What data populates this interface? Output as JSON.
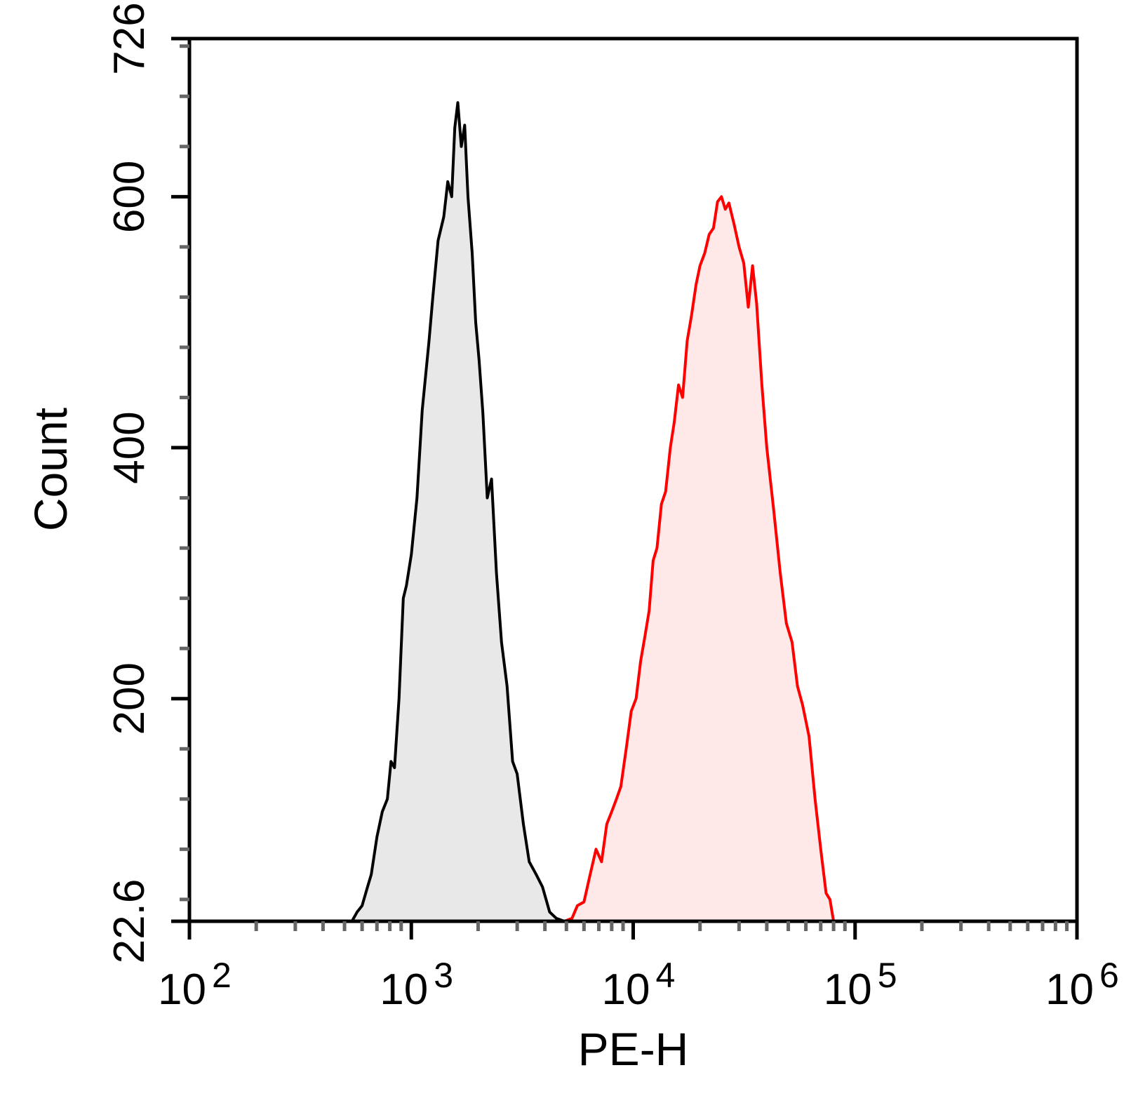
{
  "chart_data": {
    "type": "area",
    "title": "",
    "xlabel": "PE-H",
    "ylabel": "Count",
    "x_scale": "log",
    "xlim": [
      100,
      1000000
    ],
    "ylim": [
      22.6,
      726
    ],
    "x_tick_values": [
      100,
      1000,
      10000,
      100000,
      1000000
    ],
    "x_tick_labels": [
      {
        "base": "10",
        "exp": "2"
      },
      {
        "base": "10",
        "exp": "3"
      },
      {
        "base": "10",
        "exp": "4"
      },
      {
        "base": "10",
        "exp": "5"
      },
      {
        "base": "10",
        "exp": "6"
      }
    ],
    "y_tick_values": [
      22.6,
      200,
      400,
      600,
      726
    ],
    "y_tick_labels": [
      "22.6",
      "200",
      "400",
      "600",
      "726"
    ],
    "grid": false,
    "legend": "none",
    "series": [
      {
        "color": "#000000",
        "fill": "#e8e8e8",
        "points": [
          [
            540,
            22.6
          ],
          [
            570,
            30
          ],
          [
            600,
            35
          ],
          [
            630,
            48
          ],
          [
            660,
            60
          ],
          [
            700,
            90
          ],
          [
            740,
            110
          ],
          [
            780,
            120
          ],
          [
            810,
            150
          ],
          [
            840,
            145
          ],
          [
            880,
            200
          ],
          [
            920,
            280
          ],
          [
            950,
            290
          ],
          [
            1000,
            315
          ],
          [
            1060,
            360
          ],
          [
            1120,
            430
          ],
          [
            1200,
            484
          ],
          [
            1250,
            520
          ],
          [
            1320,
            565
          ],
          [
            1400,
            584
          ],
          [
            1460,
            612
          ],
          [
            1520,
            600
          ],
          [
            1570,
            655
          ],
          [
            1620,
            675
          ],
          [
            1680,
            640
          ],
          [
            1740,
            657
          ],
          [
            1800,
            600
          ],
          [
            1880,
            555
          ],
          [
            1950,
            500
          ],
          [
            2020,
            470
          ],
          [
            2100,
            428
          ],
          [
            2200,
            360
          ],
          [
            2300,
            375
          ],
          [
            2420,
            300
          ],
          [
            2550,
            245
          ],
          [
            2700,
            210
          ],
          [
            2860,
            150
          ],
          [
            3000,
            140
          ],
          [
            3200,
            100
          ],
          [
            3400,
            70
          ],
          [
            3650,
            60
          ],
          [
            3900,
            50
          ],
          [
            4200,
            30
          ],
          [
            4500,
            25
          ],
          [
            4900,
            22.6
          ]
        ]
      },
      {
        "color": "#ff0000",
        "fill": "#ffe8e8",
        "points": [
          [
            4900,
            22.6
          ],
          [
            5300,
            25
          ],
          [
            5600,
            35
          ],
          [
            6000,
            38
          ],
          [
            6400,
            60
          ],
          [
            6800,
            80
          ],
          [
            7200,
            70
          ],
          [
            7600,
            100
          ],
          [
            8000,
            110
          ],
          [
            8400,
            120
          ],
          [
            8800,
            130
          ],
          [
            9300,
            160
          ],
          [
            9800,
            190
          ],
          [
            10300,
            200
          ],
          [
            10800,
            230
          ],
          [
            11300,
            250
          ],
          [
            11800,
            270
          ],
          [
            12300,
            310
          ],
          [
            12800,
            320
          ],
          [
            13400,
            355
          ],
          [
            14000,
            365
          ],
          [
            14700,
            400
          ],
          [
            15300,
            420
          ],
          [
            16000,
            450
          ],
          [
            16700,
            440
          ],
          [
            17500,
            485
          ],
          [
            18300,
            505
          ],
          [
            19200,
            530
          ],
          [
            20000,
            545
          ],
          [
            21000,
            555
          ],
          [
            22000,
            570
          ],
          [
            23000,
            575
          ],
          [
            24000,
            596
          ],
          [
            25000,
            600
          ],
          [
            26000,
            590
          ],
          [
            27000,
            595
          ],
          [
            28500,
            578
          ],
          [
            30000,
            560
          ],
          [
            31500,
            547
          ],
          [
            33000,
            512
          ],
          [
            34500,
            545
          ],
          [
            36000,
            515
          ],
          [
            38000,
            450
          ],
          [
            40000,
            400
          ],
          [
            43000,
            350
          ],
          [
            46000,
            300
          ],
          [
            49000,
            260
          ],
          [
            52000,
            245
          ],
          [
            55000,
            210
          ],
          [
            58000,
            195
          ],
          [
            62000,
            170
          ],
          [
            66000,
            120
          ],
          [
            70000,
            80
          ],
          [
            74000,
            45
          ],
          [
            77000,
            40
          ],
          [
            80000,
            22.6
          ]
        ]
      }
    ]
  }
}
